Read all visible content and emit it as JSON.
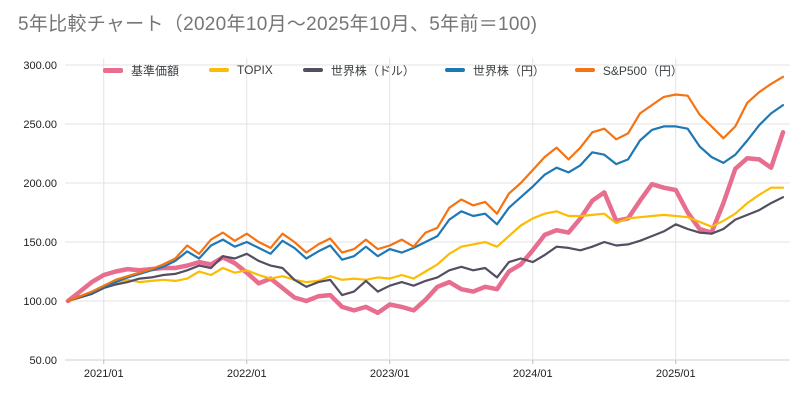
{
  "chart_data": {
    "type": "line",
    "title": "5年比較チャート（2020年10月～2025年10月、5年前＝100)",
    "baseline_note": "5年前＝100",
    "grid": true,
    "legend_position": "top",
    "x_axis": {
      "n_points": 61,
      "start": "2020/10",
      "end": "2025/10",
      "tick_indices": [
        3,
        15,
        27,
        39,
        51
      ],
      "tick_labels": [
        "2021/01",
        "2022/01",
        "2023/01",
        "2024/01",
        "2025/01"
      ]
    },
    "y_axis": {
      "min": 50,
      "max": 300,
      "tick_values": [
        300,
        250,
        200,
        150,
        100,
        50
      ],
      "tick_labels": [
        "300.00",
        "250.00",
        "200.00",
        "150.00",
        "100.00",
        "50.00"
      ]
    },
    "series": [
      {
        "name": "基準価額",
        "color": "#E76E8E",
        "line_width": 4.5,
        "values": [
          100,
          108,
          116,
          122,
          125,
          127,
          126,
          127,
          128,
          128,
          130,
          133,
          131,
          137,
          132,
          124,
          115,
          119,
          111,
          103,
          100,
          104,
          105,
          95,
          92,
          95,
          90,
          97,
          95,
          92,
          101,
          112,
          116,
          110,
          108,
          112,
          110,
          125,
          131,
          143,
          156,
          160,
          158,
          170,
          185,
          192,
          168,
          170,
          185,
          199,
          196,
          194,
          175,
          161,
          158,
          183,
          212,
          221,
          220,
          213,
          243
        ]
      },
      {
        "name": "TOPIX",
        "color": "#FBBC04",
        "line_width": 2.2,
        "values": [
          100,
          103,
          107,
          112,
          116,
          118,
          116,
          117,
          118,
          117,
          119,
          125,
          122,
          128,
          124,
          126,
          122,
          119,
          121,
          118,
          116,
          117,
          121,
          118,
          119,
          118,
          120,
          119,
          122,
          119,
          125,
          131,
          140,
          146,
          148,
          150,
          146,
          155,
          164,
          170,
          174,
          176,
          172,
          172,
          173,
          174,
          166,
          170,
          171,
          172,
          173,
          172,
          171,
          167,
          163,
          168,
          174,
          183,
          190,
          196,
          196
        ]
      },
      {
        "name": "世界株（ドル）",
        "color": "#544E62",
        "line_width": 2.2,
        "values": [
          100,
          103,
          106,
          111,
          114,
          116,
          119,
          120,
          122,
          123,
          126,
          130,
          128,
          138,
          136,
          140,
          134,
          130,
          128,
          118,
          112,
          116,
          118,
          105,
          108,
          117,
          108,
          113,
          116,
          113,
          117,
          120,
          126,
          129,
          126,
          128,
          120,
          133,
          136,
          133,
          139,
          146,
          145,
          143,
          146,
          150,
          147,
          148,
          151,
          155,
          159,
          165,
          161,
          158,
          157,
          161,
          169,
          173,
          177,
          183,
          188
        ]
      },
      {
        "name": "世界株（円）",
        "color": "#1E78B5",
        "line_width": 2.2,
        "values": [
          100,
          104,
          107,
          112,
          116,
          120,
          123,
          126,
          129,
          134,
          142,
          136,
          147,
          152,
          146,
          150,
          145,
          140,
          151,
          145,
          136,
          142,
          147,
          135,
          138,
          146,
          138,
          144,
          141,
          145,
          150,
          155,
          169,
          176,
          172,
          174,
          165,
          179,
          188,
          197,
          207,
          213,
          209,
          215,
          226,
          224,
          216,
          220,
          236,
          245,
          248,
          248,
          246,
          231,
          222,
          217,
          224,
          236,
          249,
          259,
          266
        ]
      },
      {
        "name": "S&P500（円）",
        "color": "#F57313",
        "line_width": 2.2,
        "values": [
          100,
          104,
          108,
          113,
          118,
          121,
          124,
          127,
          131,
          136,
          147,
          140,
          152,
          158,
          151,
          157,
          150,
          145,
          157,
          150,
          141,
          148,
          153,
          141,
          144,
          152,
          144,
          147,
          152,
          146,
          158,
          162,
          179,
          186,
          181,
          184,
          174,
          191,
          200,
          211,
          222,
          230,
          220,
          230,
          243,
          246,
          237,
          242,
          259,
          266,
          273,
          275,
          274,
          258,
          248,
          238,
          248,
          268,
          277,
          284,
          290
        ]
      }
    ],
    "style": {
      "grid_color": "#e3e3e3",
      "axis_color": "#cfcfcf",
      "tick_mark_color": "#bdbdbd",
      "tick_label_color": "#202124",
      "title_color": "#757575"
    }
  }
}
